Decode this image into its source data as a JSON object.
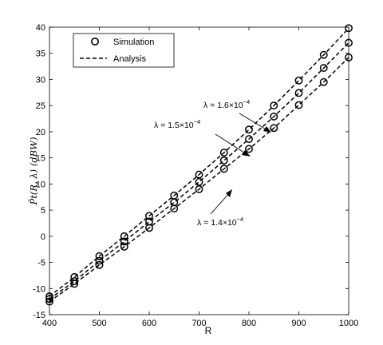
{
  "chart_data": {
    "type": "line",
    "xlabel": "R",
    "ylabel": "P̄t(R, λ) (dBW)",
    "xlim": [
      400,
      1000
    ],
    "ylim": [
      -15,
      40
    ],
    "xticks": [
      400,
      500,
      600,
      700,
      800,
      900,
      1000
    ],
    "yticks": [
      -15,
      -10,
      -5,
      0,
      5,
      10,
      15,
      20,
      25,
      30,
      35,
      40
    ],
    "grid": false,
    "legend": {
      "placement": "top-left",
      "entries": [
        {
          "label": "Simulation",
          "style": "circle-marker"
        },
        {
          "label": "Analysis",
          "style": "dashed-line"
        }
      ]
    },
    "series": [
      {
        "lambda_label": "λ = 1.6×10",
        "exponent": "−4",
        "x": [
          400,
          450,
          500,
          550,
          600,
          650,
          700,
          750,
          800,
          850,
          900,
          950,
          1000
        ],
        "y": [
          -11.5,
          -7.8,
          -3.8,
          0.0,
          3.9,
          7.8,
          11.8,
          16.0,
          20.4,
          25.0,
          29.8,
          34.7,
          39.8
        ]
      },
      {
        "lambda_label": "λ = 1.5×10",
        "exponent": "−4",
        "x": [
          400,
          450,
          500,
          550,
          600,
          650,
          700,
          750,
          800,
          850,
          900,
          950,
          1000
        ],
        "y": [
          -12.0,
          -8.6,
          -4.7,
          -1.0,
          2.8,
          6.5,
          10.4,
          14.5,
          18.6,
          22.9,
          27.4,
          32.2,
          37.0
        ]
      },
      {
        "lambda_label": "λ = 1.4×10",
        "exponent": "−4",
        "x": [
          400,
          450,
          500,
          550,
          600,
          650,
          700,
          750,
          800,
          850,
          900,
          950,
          1000
        ],
        "y": [
          -12.5,
          -9.1,
          -5.5,
          -2.0,
          1.6,
          5.3,
          9.0,
          12.9,
          16.7,
          20.7,
          25.1,
          29.5,
          34.2
        ]
      }
    ],
    "colors": {
      "line": "#000000",
      "background": "#ffffff"
    }
  }
}
